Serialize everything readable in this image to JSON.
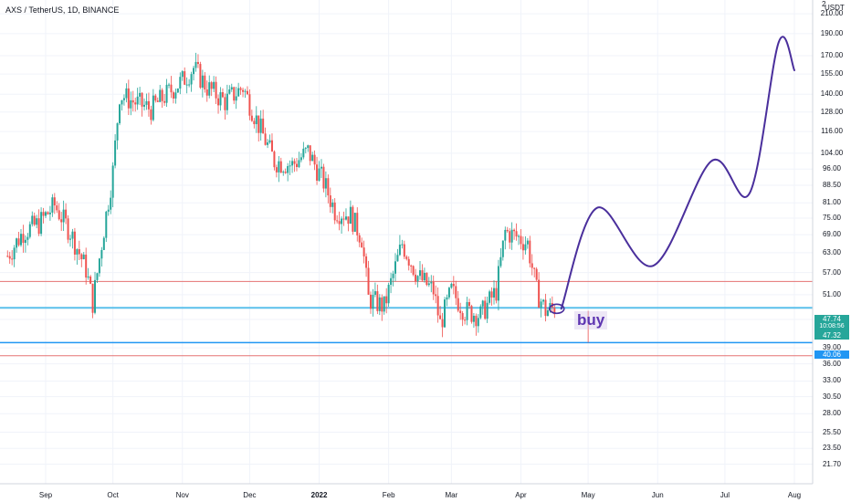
{
  "header": {
    "title": "AXS / TetherUS, 1D, BINANCE",
    "currency": "USDT",
    "scale_marker": "2"
  },
  "y_axis": {
    "ticks": [
      "210.00",
      "190.00",
      "170.00",
      "155.00",
      "140.00",
      "128.00",
      "116.00",
      "104.00",
      "96.00",
      "88.50",
      "81.00",
      "75.00",
      "69.00",
      "63.00",
      "57.00",
      "51.00",
      "45.00",
      "39.00",
      "36.00",
      "33.00",
      "30.50",
      "28.00",
      "25.50",
      "23.50",
      "21.70"
    ]
  },
  "x_axis": {
    "ticks": [
      "Sep",
      "Oct",
      "Nov",
      "Dec",
      "2022",
      "Feb",
      "Mar",
      "Apr",
      "May",
      "Jun",
      "Jul",
      "Aug"
    ]
  },
  "price_tags": {
    "current": "47.74",
    "countdown": "10:08:56",
    "second": "47.32",
    "support": "40.06"
  },
  "annotation": {
    "buy_label": "buy"
  },
  "colors": {
    "up": "#26a69a",
    "down": "#ef5350",
    "projection": "#4a2f9c",
    "support_line": "#2196f3",
    "red_line": "#e57373",
    "current_tag": "#26a69a",
    "second_tag": "#26a69a",
    "support_tag": "#2196f3"
  },
  "chart_data": {
    "type": "candlestick",
    "symbol": "AXS / TetherUS",
    "interval": "1D",
    "exchange": "BINANCE",
    "scale": "log",
    "ylim": [
      20.5,
      215
    ],
    "support_level": 40.06,
    "resistance_lines": [
      54.5,
      37.5
    ],
    "close_path": [
      {
        "date": "Aug 15",
        "close": 62
      },
      {
        "date": "Aug 22",
        "close": 70
      },
      {
        "date": "Aug 29",
        "close": 73
      },
      {
        "date": "Sep 5",
        "close": 80
      },
      {
        "date": "Sep 12",
        "close": 70
      },
      {
        "date": "Sep 19",
        "close": 58
      },
      {
        "date": "Sep 22",
        "close": 49
      },
      {
        "date": "Sep 26",
        "close": 66
      },
      {
        "date": "Oct 1",
        "close": 95
      },
      {
        "date": "Oct 4",
        "close": 140
      },
      {
        "date": "Oct 10",
        "close": 135
      },
      {
        "date": "Oct 18",
        "close": 130
      },
      {
        "date": "Oct 25",
        "close": 140
      },
      {
        "date": "Nov 1",
        "close": 150
      },
      {
        "date": "Nov 6",
        "close": 160
      },
      {
        "date": "Nov 12",
        "close": 145
      },
      {
        "date": "Nov 20",
        "close": 135
      },
      {
        "date": "Nov 28",
        "close": 145
      },
      {
        "date": "Dec 5",
        "close": 120
      },
      {
        "date": "Dec 12",
        "close": 100
      },
      {
        "date": "Dec 20",
        "close": 98
      },
      {
        "date": "Dec 27",
        "close": 105
      },
      {
        "date": "Jan 3",
        "close": 90
      },
      {
        "date": "Jan 8",
        "close": 78
      },
      {
        "date": "Jan 15",
        "close": 76
      },
      {
        "date": "Jan 20",
        "close": 68
      },
      {
        "date": "Jan 23",
        "close": 50
      },
      {
        "date": "Jan 30",
        "close": 48
      },
      {
        "date": "Feb 7",
        "close": 66
      },
      {
        "date": "Feb 14",
        "close": 56
      },
      {
        "date": "Feb 21",
        "close": 52
      },
      {
        "date": "Feb 24",
        "close": 44
      },
      {
        "date": "Mar 1",
        "close": 52
      },
      {
        "date": "Mar 7",
        "close": 47
      },
      {
        "date": "Mar 14",
        "close": 46
      },
      {
        "date": "Mar 21",
        "close": 52
      },
      {
        "date": "Mar 25",
        "close": 70
      },
      {
        "date": "Mar 31",
        "close": 68
      },
      {
        "date": "Apr 4",
        "close": 66
      },
      {
        "date": "Apr 8",
        "close": 52
      },
      {
        "date": "Apr 12",
        "close": 47
      },
      {
        "date": "Apr 16",
        "close": 47.74
      }
    ],
    "projection": [
      {
        "date": "Apr 19",
        "price": 47.5
      },
      {
        "date": "May 5",
        "price": 79
      },
      {
        "date": "May 30",
        "price": 59
      },
      {
        "date": "Jun 25",
        "price": 100
      },
      {
        "date": "Jul 12",
        "price": 85
      },
      {
        "date": "Jul 25",
        "price": 182
      },
      {
        "date": "Aug 1",
        "price": 158
      }
    ]
  }
}
